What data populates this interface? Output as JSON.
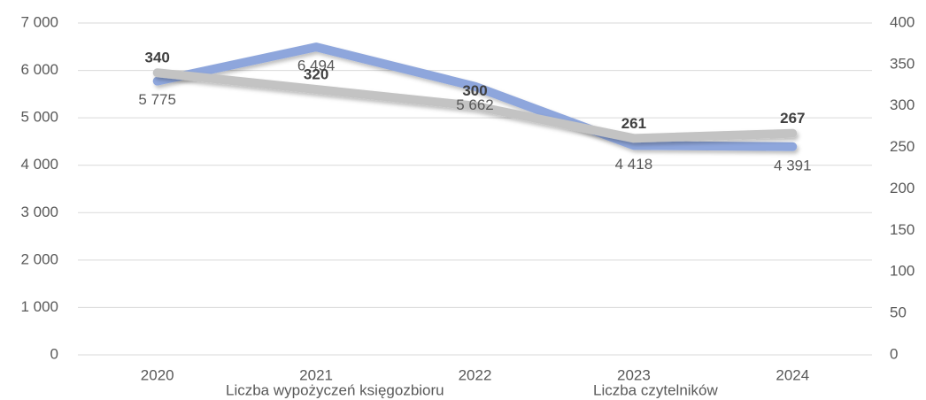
{
  "chart_data": {
    "type": "line",
    "categories": [
      "2020",
      "2021",
      "2022",
      "2023",
      "2024"
    ],
    "series": [
      {
        "name": "Liczba wypożyczeń księgozbioru",
        "color": "#8ea6dc",
        "values": [
          5775,
          6494,
          5662,
          4418,
          4391
        ],
        "value_labels": [
          "5 775",
          "6 494",
          "5 662",
          "4 418",
          "4 391"
        ]
      },
      {
        "name": "Liczba czytelników",
        "color": "#c3c3c3",
        "axis": "y2",
        "values": [
          340,
          320,
          300,
          261,
          267
        ]
      }
    ],
    "ylim": [
      0,
      7000
    ],
    "yticks": [
      0,
      {
        "value": 1000,
        "label": "1 000"
      },
      {
        "value": 2000,
        "label": "2 000"
      },
      {
        "value": 3000,
        "label": "3 000"
      },
      {
        "value": 4000,
        "label": "4 000"
      },
      {
        "value": 5000,
        "label": "5 000"
      },
      {
        "value": 6000,
        "label": "6 000"
      },
      {
        "value": 7000,
        "label": "7 000"
      }
    ],
    "y2lim": [
      0,
      400
    ],
    "y2ticks": [
      0,
      50,
      100,
      150,
      200,
      250,
      300,
      350,
      400
    ],
    "grid": true,
    "legend": "bottom"
  }
}
